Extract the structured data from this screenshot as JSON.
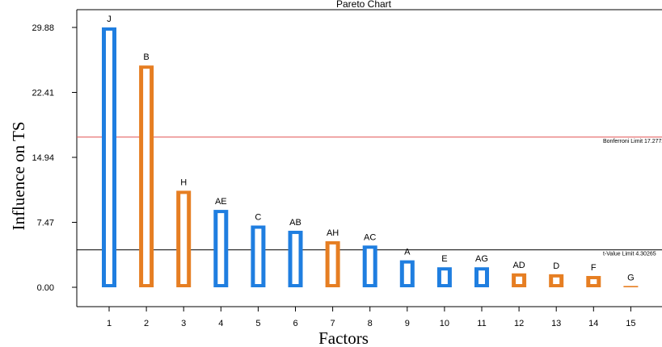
{
  "chart_data": {
    "type": "bar",
    "title": "Pareto Chart",
    "xlabel": "Factors",
    "ylabel": "Influence on TS",
    "ylim": [
      0,
      29.88
    ],
    "yticks": [
      "0.00",
      "7.47",
      "14.94",
      "22.41",
      "29.88"
    ],
    "yticks_values": [
      0,
      7.47,
      14.94,
      22.41,
      29.88
    ],
    "categories": [
      "1",
      "2",
      "3",
      "4",
      "5",
      "6",
      "7",
      "8",
      "9",
      "10",
      "11",
      "12",
      "13",
      "14",
      "15"
    ],
    "factor_labels": [
      "J",
      "B",
      "H",
      "AE",
      "C",
      "AB",
      "AH",
      "AC",
      "A",
      "E",
      "AG",
      "AD",
      "D",
      "F",
      "G"
    ],
    "values": [
      29.88,
      25.5,
      11.1,
      8.9,
      7.1,
      6.5,
      5.3,
      4.8,
      3.1,
      2.3,
      2.3,
      1.6,
      1.5,
      1.3,
      0.15
    ],
    "colors": [
      "blue",
      "orange",
      "orange",
      "blue",
      "blue",
      "blue",
      "orange",
      "blue",
      "blue",
      "blue",
      "blue",
      "orange",
      "orange",
      "orange",
      "orange"
    ],
    "palette": {
      "blue": "#1f7ee0",
      "orange": "#e67e22"
    },
    "limits": [
      {
        "label": "Bonferroni Limit 17.2772",
        "value": 17.2772,
        "color": "#e05050"
      },
      {
        "label": "t-Value Limit 4.30265",
        "value": 4.30265,
        "color": "#000000"
      }
    ],
    "grid": false
  }
}
